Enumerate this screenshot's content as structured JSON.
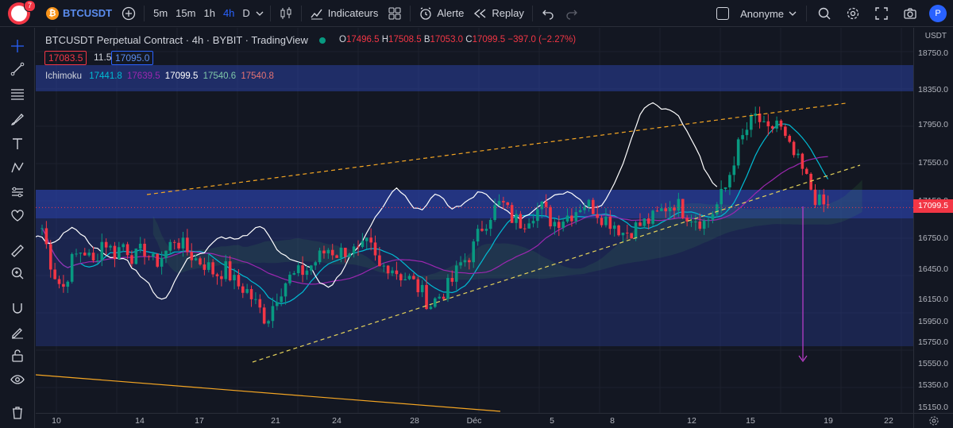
{
  "header": {
    "notification_count": "7",
    "symbol": "BTCUSDT",
    "timeframes": [
      "5m",
      "15m",
      "1h",
      "4h",
      "D"
    ],
    "active_timeframe": "4h",
    "indicators_label": "Indicateurs",
    "alert_label": "Alerte",
    "replay_label": "Replay",
    "account_label": "Anonyme",
    "user_initial": "P"
  },
  "legend": {
    "title": "BTCUSDT Perpetual Contract · 4h · BYBIT · TradingView",
    "open_label": "O",
    "open": "17496.5",
    "high_label": "H",
    "high": "17508.5",
    "low_label": "B",
    "low": "17053.0",
    "close_label": "C",
    "close": "17099.5",
    "change": "−397.0 (−2.27%)",
    "sell_price": "17083.5",
    "spread": "11.5",
    "buy_price": "17095.0",
    "ichimoku_name": "Ichimoku",
    "ichimoku_values": [
      "17441.8",
      "17639.5",
      "17099.5",
      "17540.6",
      "17540.8"
    ]
  },
  "price_axis": {
    "currency": "USDT",
    "ticks": [
      "18750.0",
      "18350.0",
      "17950.0",
      "17550.0",
      "17150.0",
      "16750.0",
      "16450.0",
      "16150.0",
      "15950.0",
      "15750.0",
      "15550.0",
      "15350.0",
      "15150.0"
    ],
    "current_price": "17099.5"
  },
  "time_axis": {
    "ticks": [
      "10",
      "14",
      "17",
      "21",
      "24",
      "28",
      "Déc",
      "5",
      "8",
      "12",
      "15",
      "19",
      "22"
    ]
  },
  "colors": {
    "bull": "#089981",
    "bear": "#f23645",
    "accent": "#2962ff",
    "zone": "#2a3fa0",
    "trendline": "#f5a623",
    "white_line": "#ffffff",
    "cyan_line": "#00bcd4",
    "purple_line": "#9c27b0",
    "arrow": "#c03ecf"
  },
  "chart_data": {
    "type": "candlestick",
    "price_range": [
      15100,
      18850
    ],
    "visible_close_approx": [
      16900,
      16500,
      16300,
      16600,
      16700,
      16550,
      16800,
      16650,
      16750,
      16600,
      16700,
      16550,
      16650,
      16800,
      16700,
      16600,
      16550,
      16450,
      16500,
      16350,
      16300,
      16150,
      16000,
      16250,
      16400,
      16450,
      16500,
      16600,
      16700,
      16650,
      16700,
      16650,
      16750,
      16500,
      16550,
      16450,
      16400,
      16300,
      16150,
      16250,
      16350,
      16550,
      16650,
      16900,
      17050,
      17150,
      17000,
      16950,
      17050,
      17100,
      16950,
      17000,
      17050,
      17150,
      17100,
      17000,
      16950,
      16850,
      16900,
      16950,
      17000,
      17100,
      17150,
      17050,
      17000,
      16950,
      17100,
      17300,
      17650,
      17850,
      18000,
      17800,
      17950,
      17700,
      17550,
      17350,
      17150,
      17099.5
    ],
    "zones": [
      {
        "from": 18350,
        "to": 18600
      },
      {
        "from": 17050,
        "to": 17300
      },
      {
        "from": 15750,
        "to": 17050
      }
    ]
  },
  "tools": [
    "crosshair-icon",
    "trendline-icon",
    "fib-icon",
    "brush-icon",
    "text-icon",
    "pattern-icon",
    "prediction-icon",
    "heart-icon",
    "ruler-icon",
    "zoom-icon",
    "magnet-icon",
    "lock-draw-icon",
    "lock-icon",
    "eye-icon",
    "trash-icon"
  ]
}
